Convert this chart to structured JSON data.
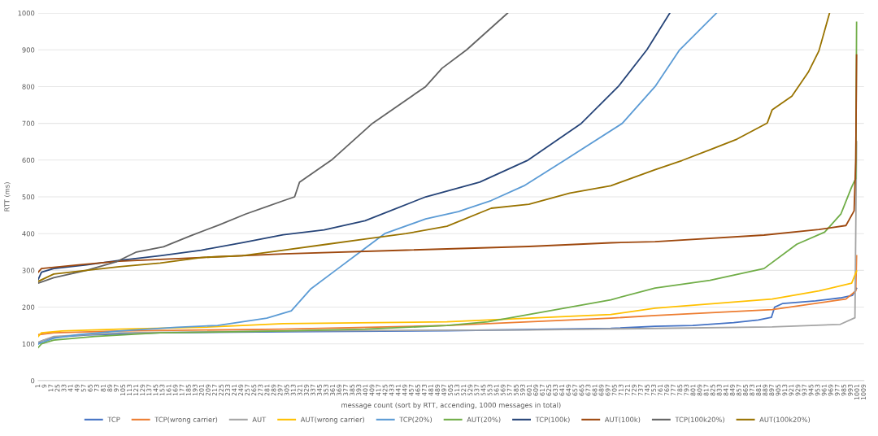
{
  "chart_data": {
    "type": "line",
    "xlabel": "message count (sort by RTT, accending, 1000 messages in total)",
    "ylabel": "RTT (ms)",
    "xlim": [
      1,
      1009
    ],
    "xticks": [
      1,
      9,
      17,
      25,
      33,
      41,
      49,
      57,
      65,
      73,
      81,
      89,
      97,
      105,
      113,
      121,
      129,
      137,
      145,
      153,
      161,
      169,
      177,
      185,
      193,
      201,
      209,
      217,
      225,
      233,
      241,
      249,
      257,
      265,
      273,
      281,
      289,
      297,
      305,
      313,
      321,
      329,
      337,
      345,
      353,
      361,
      369,
      377,
      385,
      393,
      401,
      409,
      417,
      425,
      433,
      441,
      449,
      457,
      465,
      473,
      481,
      489,
      497,
      505,
      513,
      521,
      529,
      537,
      545,
      553,
      561,
      569,
      577,
      585,
      593,
      601,
      609,
      617,
      625,
      633,
      641,
      649,
      657,
      665,
      673,
      681,
      689,
      697,
      705,
      713,
      721,
      729,
      737,
      745,
      753,
      761,
      769,
      777,
      785,
      793,
      801,
      809,
      817,
      825,
      833,
      841,
      849,
      857,
      865,
      873,
      881,
      889,
      897,
      905,
      913,
      921,
      929,
      937,
      945,
      953,
      961,
      969,
      977,
      985,
      993,
      1001,
      1009
    ],
    "ylim": [
      0,
      1000
    ],
    "yticks": [
      0,
      100,
      200,
      300,
      400,
      500,
      600,
      700,
      800,
      900,
      1000
    ],
    "grid": "y",
    "legend": "bottom",
    "marker": "none",
    "line_style": "solid",
    "series": [
      {
        "name": "TCP",
        "color": "#4472c4",
        "x": [
          1,
          5,
          20,
          60,
          150,
          300,
          500,
          700,
          754,
          800,
          850,
          880,
          896,
          900,
          910,
          950,
          980,
          995,
          1000
        ],
        "values": [
          100,
          108,
          118,
          124,
          130,
          133,
          136,
          142,
          148,
          150,
          158,
          165,
          172,
          200,
          210,
          217,
          225,
          232,
          251
        ]
      },
      {
        "name": "TCP(wrong carrier)",
        "color": "#ed7d31",
        "x": [
          1,
          20,
          100,
          300,
          500,
          600,
          700,
          754,
          897,
          987,
          999,
          1000
        ],
        "values": [
          125,
          130,
          135,
          140,
          150,
          160,
          170,
          177,
          193,
          222,
          244,
          340
        ]
      },
      {
        "name": "AUT",
        "color": "#a5a5a5",
        "x": [
          1,
          20,
          100,
          300,
          600,
          754,
          897,
          980,
          998,
          1000
        ],
        "values": [
          105,
          120,
          130,
          135,
          138,
          142,
          146,
          153,
          171,
          650
        ]
      },
      {
        "name": "AUT(wrong carrier)",
        "color": "#ffc000",
        "x": [
          1,
          5,
          30,
          100,
          200,
          300,
          500,
          600,
          700,
          754,
          897,
          954,
          994,
          1000
        ],
        "values": [
          120,
          130,
          135,
          140,
          145,
          155,
          160,
          170,
          180,
          197,
          222,
          244,
          265,
          298
        ]
      },
      {
        "name": "TCP(20%)",
        "color": "#5b9bd5",
        "x": [
          1,
          20,
          50,
          100,
          170,
          220,
          250,
          280,
          310,
          334,
          364,
          394,
          424,
          474,
          514,
          554,
          594,
          644,
          714,
          754,
          784,
          829
        ],
        "values": [
          100,
          115,
          125,
          135,
          145,
          150,
          160,
          170,
          190,
          250,
          300,
          350,
          400,
          440,
          460,
          490,
          530,
          600,
          700,
          800,
          900,
          1000
        ]
      },
      {
        "name": "AUT(20%)",
        "color": "#70ad47",
        "x": [
          1,
          5,
          20,
          70,
          150,
          300,
          400,
          500,
          550,
          600,
          650,
          700,
          754,
          821,
          887,
          927,
          961,
          981,
          994,
          999,
          1000
        ],
        "values": [
          90,
          100,
          110,
          120,
          130,
          135,
          140,
          150,
          160,
          180,
          200,
          220,
          252,
          273,
          305,
          371,
          404,
          454,
          527,
          550,
          975
        ]
      },
      {
        "name": "TCP(100k)",
        "color": "#264478",
        "x": [
          1,
          5,
          20,
          60,
          100,
          150,
          200,
          250,
          300,
          350,
          400,
          474,
          540,
          599,
          664,
          709,
          744,
          772
        ],
        "values": [
          275,
          295,
          305,
          315,
          327,
          340,
          355,
          375,
          397,
          410,
          435,
          500,
          540,
          600,
          700,
          800,
          900,
          1000
        ]
      },
      {
        "name": "AUT(100k)",
        "color": "#9e480e",
        "x": [
          1,
          5,
          50,
          100,
          200,
          300,
          450,
          600,
          700,
          754,
          887,
          954,
          987,
          997,
          999,
          1000
        ],
        "values": [
          295,
          305,
          315,
          325,
          335,
          345,
          355,
          365,
          375,
          378,
          396,
          411,
          422,
          462,
          599,
          886
        ]
      },
      {
        "name": "TCP(100k20%)",
        "color": "#636363",
        "x": [
          1,
          20,
          60,
          97,
          121,
          154,
          187,
          221,
          254,
          301,
          314,
          320,
          359,
          409,
          474,
          494,
          524,
          574
        ],
        "values": [
          265,
          280,
          300,
          324,
          350,
          364,
          394,
          423,
          453,
          490,
          500,
          540,
          600,
          700,
          800,
          850,
          900,
          1000
        ]
      },
      {
        "name": "AUT(100k20%)",
        "color": "#997300",
        "x": [
          1,
          20,
          60,
          100,
          150,
          200,
          250,
          300,
          350,
          400,
          450,
          500,
          554,
          600,
          650,
          700,
          754,
          787,
          821,
          854,
          891,
          897,
          921,
          941,
          954,
          967
        ],
        "values": [
          270,
          290,
          300,
          310,
          320,
          335,
          340,
          355,
          370,
          385,
          400,
          420,
          469,
          480,
          510,
          530,
          574,
          599,
          628,
          657,
          701,
          737,
          774,
          839,
          897,
          1000
        ]
      }
    ]
  }
}
